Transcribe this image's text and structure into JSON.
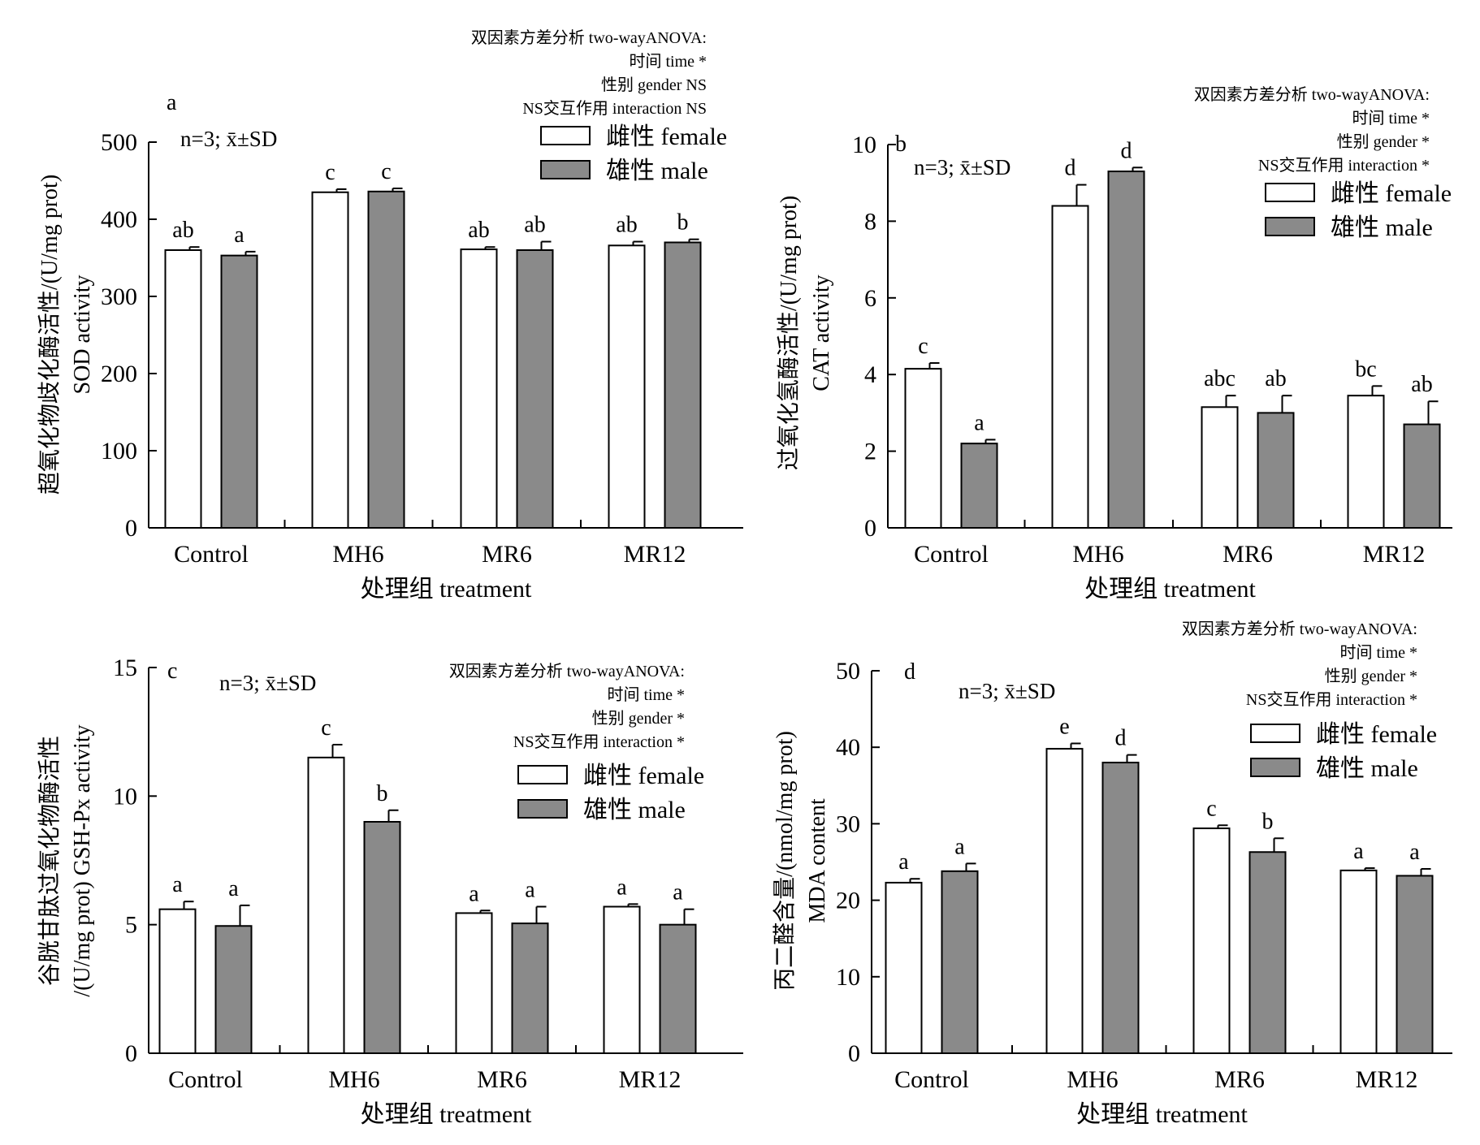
{
  "chart_data": [
    {
      "type": "bar",
      "panel": "a",
      "categories": [
        "Control",
        "MH6",
        "MR6",
        "MR12"
      ],
      "xlabel": "处理组 treatment",
      "ylabel_lines": [
        "超氧化物歧化酶活性/(U/mg prot)",
        "SOD activity"
      ],
      "ylim": [
        0,
        500
      ],
      "yticks": [
        0,
        100,
        200,
        300,
        400,
        500
      ],
      "n_label": "n=3; x̄±SD",
      "anova_lines": [
        "双因素方差分析 two-wayANOVA:",
        "时间 time *",
        "性别 gender NS",
        "NS交互作用 interaction NS"
      ],
      "legend_position": "top-right",
      "series": [
        {
          "name": "雌性 female",
          "color": "#ffffff",
          "values": [
            360,
            435,
            361,
            366
          ],
          "errors": [
            4,
            4,
            3,
            5
          ],
          "letters": [
            "ab",
            "c",
            "ab",
            "ab"
          ]
        },
        {
          "name": "雄性 male",
          "color": "#8a8a8a",
          "values": [
            353,
            436,
            360,
            370
          ],
          "errors": [
            5,
            4,
            11,
            4
          ],
          "letters": [
            "a",
            "c",
            "ab",
            "b"
          ]
        }
      ]
    },
    {
      "type": "bar",
      "panel": "b",
      "categories": [
        "Control",
        "MH6",
        "MR6",
        "MR12"
      ],
      "xlabel": "处理组 treatment",
      "ylabel_lines": [
        "过氧化氢酶活性/(U/mg prot)",
        "CAT activity"
      ],
      "ylim": [
        0,
        10
      ],
      "yticks": [
        0,
        2,
        4,
        6,
        8,
        10
      ],
      "n_label": "n=3; x̄±SD",
      "anova_lines": [
        "双因素方差分析 two-wayANOVA:",
        "时间 time *",
        "性别 gender *",
        "NS交互作用 interaction *"
      ],
      "legend_position": "top-right",
      "series": [
        {
          "name": "雌性 female",
          "color": "#ffffff",
          "values": [
            4.15,
            8.4,
            3.15,
            3.45
          ],
          "errors": [
            0.15,
            0.55,
            0.3,
            0.25
          ],
          "letters": [
            "c",
            "d",
            "abc",
            "bc"
          ]
        },
        {
          "name": "雄性 male",
          "color": "#8a8a8a",
          "values": [
            2.2,
            9.3,
            3.0,
            2.7
          ],
          "errors": [
            0.1,
            0.1,
            0.45,
            0.6
          ],
          "letters": [
            "a",
            "d",
            "ab",
            "ab"
          ]
        }
      ]
    },
    {
      "type": "bar",
      "panel": "c",
      "categories": [
        "Control",
        "MH6",
        "MR6",
        "MR12"
      ],
      "xlabel": "处理组 treatment",
      "ylabel_lines": [
        "谷胱甘肽过氧化物酶活性",
        "/(U/mg prot) GSH-Px activity"
      ],
      "ylim": [
        0,
        15
      ],
      "yticks": [
        0,
        5,
        10,
        15
      ],
      "n_label": "n=3; x̄±SD",
      "anova_lines": [
        "双因素方差分析 two-wayANOVA:",
        "时间 time *",
        "性别 gender *",
        "NS交互作用 interaction *"
      ],
      "legend_position": "top-right",
      "series": [
        {
          "name": "雌性 female",
          "color": "#ffffff",
          "values": [
            5.6,
            11.5,
            5.45,
            5.7
          ],
          "errors": [
            0.3,
            0.5,
            0.1,
            0.1
          ],
          "letters": [
            "a",
            "c",
            "a",
            "a"
          ]
        },
        {
          "name": "雄性 male",
          "color": "#8a8a8a",
          "values": [
            4.95,
            9.0,
            5.05,
            5.0
          ],
          "errors": [
            0.8,
            0.45,
            0.65,
            0.6
          ],
          "letters": [
            "a",
            "b",
            "a",
            "a"
          ]
        }
      ]
    },
    {
      "type": "bar",
      "panel": "d",
      "categories": [
        "Control",
        "MH6",
        "MR6",
        "MR12"
      ],
      "xlabel": "处理组 treatment",
      "ylabel_lines": [
        "丙二醛含量/(nmol/mg prot)",
        "MDA content"
      ],
      "ylim": [
        0,
        50
      ],
      "yticks": [
        0,
        10,
        20,
        30,
        40,
        50
      ],
      "n_label": "n=3; x̄±SD",
      "anova_lines": [
        "双因素方差分析 two-wayANOVA:",
        "时间 time *",
        "性别 gender *",
        "NS交互作用 interaction *"
      ],
      "legend_position": "top-right",
      "series": [
        {
          "name": "雌性 female",
          "color": "#ffffff",
          "values": [
            22.3,
            39.8,
            29.4,
            23.9
          ],
          "errors": [
            0.5,
            0.7,
            0.4,
            0.3
          ],
          "letters": [
            "a",
            "e",
            "c",
            "a"
          ]
        },
        {
          "name": "雄性 male",
          "color": "#8a8a8a",
          "values": [
            23.8,
            38.0,
            26.3,
            23.2
          ],
          "errors": [
            1.0,
            1.0,
            1.8,
            0.9
          ],
          "letters": [
            "a",
            "d",
            "b",
            "a"
          ]
        }
      ]
    }
  ]
}
